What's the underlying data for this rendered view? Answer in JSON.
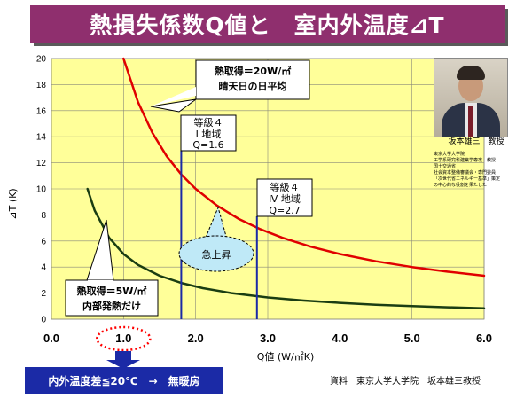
{
  "title": "熱損失係数Q値と　室内外温度⊿T",
  "chart_data": {
    "type": "line",
    "xlabel": "Q値 (W/㎡K)",
    "ylabel": "⊿T (K)",
    "xlim": [
      0,
      6
    ],
    "ylim": [
      0,
      20
    ],
    "xticks": [
      "0.0",
      "1.0",
      "2.0",
      "3.0",
      "4.0",
      "5.0",
      "6.0"
    ],
    "yticks": [
      "0",
      "2",
      "4",
      "6",
      "8",
      "10",
      "12",
      "14",
      "16",
      "18",
      "20"
    ],
    "grid": true,
    "series": [
      {
        "name": "熱取得＝20W/㎡",
        "color": "#e00000",
        "x": [
          1.0,
          1.2,
          1.4,
          1.6,
          1.8,
          2.0,
          2.3,
          2.6,
          2.9,
          3.2,
          3.6,
          4.0,
          4.5,
          5.0,
          5.5,
          6.0
        ],
        "y": [
          20.0,
          16.67,
          14.29,
          12.5,
          11.11,
          10.0,
          8.7,
          7.69,
          6.9,
          6.25,
          5.56,
          5.0,
          4.44,
          4.0,
          3.64,
          3.33
        ]
      },
      {
        "name": "熱取得＝5W/㎡",
        "color": "#1a3d12",
        "x": [
          0.5,
          0.6,
          0.8,
          1.0,
          1.2,
          1.5,
          1.8,
          2.1,
          2.5,
          3.0,
          3.5,
          4.0,
          4.5,
          5.0,
          5.5,
          6.0
        ],
        "y": [
          10.0,
          8.33,
          6.25,
          5.0,
          4.17,
          3.33,
          2.78,
          2.38,
          2.0,
          1.67,
          1.43,
          1.25,
          1.11,
          1.0,
          0.91,
          0.83
        ]
      }
    ],
    "annotations": {
      "red_label_line1": "熱取得＝20W/㎡",
      "red_label_line2": "晴天日の日平均",
      "green_label_line1": "熱取得＝5W/㎡",
      "green_label_line2": "内部発熱だけ",
      "grade1_line1": "等級４",
      "grade1_line2": "Ⅰ 地域",
      "grade1_line3": "Q=1.6",
      "grade1_q": 1.8,
      "grade2_line1": "等級４",
      "grade2_line2": "Ⅳ 地域",
      "grade2_line3": "Q=2.7",
      "grade2_q": 2.85,
      "callout": "急上昇",
      "highlight_x": 1.0
    }
  },
  "person": {
    "name": "坂本雄三　教授",
    "bio": [
      "東京大学大学院",
      "工学系研究科建築学専攻　教授",
      "国土交通省",
      "社会資本整備審議会・専門委員",
      "「次世代省エネルギー基準」策定",
      "の中心的な役割を果たした"
    ]
  },
  "bottom_note": "内外温度差≦20℃　→　無暖房",
  "source": "資料　東京大学大学院　坂本雄三教授",
  "colors": {
    "title_bg": "#8f2f6e",
    "plot_bg": "#ffff99",
    "red_curve": "#e00000",
    "green_curve": "#1a3d12",
    "vline": "#1b2aa6",
    "callout_fill": "#bfe9f7",
    "bottom_bg": "#1b2aa6"
  }
}
